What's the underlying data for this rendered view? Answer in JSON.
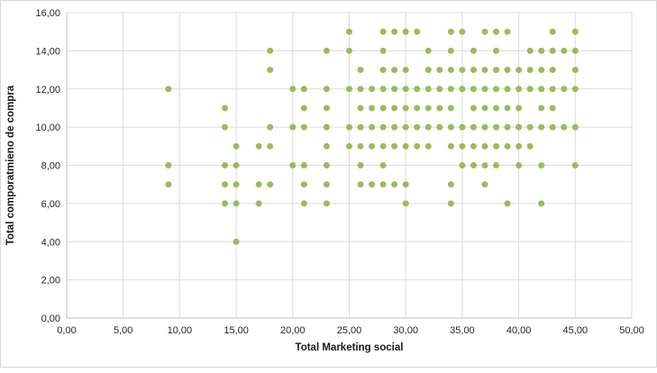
{
  "chart_data": {
    "type": "scatter",
    "title": "",
    "xlabel": "Total Marketing social",
    "ylabel": "Total comporatmieno de compra",
    "xlim": [
      0,
      50
    ],
    "ylim": [
      0,
      16
    ],
    "x_tick_values": [
      0,
      5,
      10,
      15,
      20,
      25,
      30,
      35,
      40,
      45,
      50
    ],
    "x_ticks": [
      "0,00",
      "5,00",
      "10,00",
      "15,00",
      "20,00",
      "25,00",
      "30,00",
      "35,00",
      "40,00",
      "45,00",
      "50,00"
    ],
    "y_tick_values": [
      0,
      2,
      4,
      6,
      8,
      10,
      12,
      14,
      16
    ],
    "y_ticks": [
      "0,00",
      "2,00",
      "4,00",
      "6,00",
      "8,00",
      "10,00",
      "12,00",
      "14,00",
      "16,00"
    ],
    "grid": true,
    "legend": "none",
    "marker_color": "#9BBB59",
    "gridline_color": "#DCDCDC",
    "axis_color": "#BFBFBF",
    "text_color": "#262626",
    "points": [
      [
        25,
        15
      ],
      [
        28,
        15
      ],
      [
        29,
        15
      ],
      [
        30,
        15
      ],
      [
        31,
        15
      ],
      [
        34,
        15
      ],
      [
        35,
        15
      ],
      [
        37,
        15
      ],
      [
        38,
        15
      ],
      [
        39,
        15
      ],
      [
        43,
        15
      ],
      [
        45,
        15
      ],
      [
        18,
        14
      ],
      [
        23,
        14
      ],
      [
        25,
        14
      ],
      [
        28,
        14
      ],
      [
        32,
        14
      ],
      [
        34,
        14
      ],
      [
        36,
        14
      ],
      [
        38,
        14
      ],
      [
        41,
        14
      ],
      [
        42,
        14
      ],
      [
        43,
        14
      ],
      [
        44,
        14
      ],
      [
        45,
        14
      ],
      [
        18,
        13
      ],
      [
        26,
        13
      ],
      [
        28,
        13
      ],
      [
        29,
        13
      ],
      [
        30,
        13
      ],
      [
        32,
        13
      ],
      [
        33,
        13
      ],
      [
        34,
        13
      ],
      [
        35,
        13
      ],
      [
        36,
        13
      ],
      [
        37,
        13
      ],
      [
        38,
        13
      ],
      [
        39,
        13
      ],
      [
        40,
        13
      ],
      [
        41,
        13
      ],
      [
        42,
        13
      ],
      [
        43,
        13
      ],
      [
        45,
        13
      ],
      [
        9,
        12
      ],
      [
        20,
        12
      ],
      [
        21,
        12
      ],
      [
        23,
        12
      ],
      [
        25,
        12
      ],
      [
        26,
        12
      ],
      [
        27,
        12
      ],
      [
        28,
        12
      ],
      [
        29,
        12
      ],
      [
        30,
        12
      ],
      [
        31,
        12
      ],
      [
        32,
        12
      ],
      [
        33,
        12
      ],
      [
        34,
        12
      ],
      [
        35,
        12
      ],
      [
        36,
        12
      ],
      [
        37,
        12
      ],
      [
        38,
        12
      ],
      [
        39,
        12
      ],
      [
        40,
        12
      ],
      [
        41,
        12
      ],
      [
        42,
        12
      ],
      [
        43,
        12
      ],
      [
        44,
        12
      ],
      [
        45,
        12
      ],
      [
        14,
        11
      ],
      [
        21,
        11
      ],
      [
        23,
        11
      ],
      [
        26,
        11
      ],
      [
        27,
        11
      ],
      [
        28,
        11
      ],
      [
        29,
        11
      ],
      [
        30,
        11
      ],
      [
        31,
        11
      ],
      [
        32,
        11
      ],
      [
        33,
        11
      ],
      [
        34,
        11
      ],
      [
        36,
        11
      ],
      [
        37,
        11
      ],
      [
        38,
        11
      ],
      [
        39,
        11
      ],
      [
        40,
        11
      ],
      [
        42,
        11
      ],
      [
        43,
        11
      ],
      [
        14,
        10
      ],
      [
        18,
        10
      ],
      [
        20,
        10
      ],
      [
        21,
        10
      ],
      [
        23,
        10
      ],
      [
        25,
        10
      ],
      [
        26,
        10
      ],
      [
        27,
        10
      ],
      [
        28,
        10
      ],
      [
        29,
        10
      ],
      [
        30,
        10
      ],
      [
        31,
        10
      ],
      [
        32,
        10
      ],
      [
        33,
        10
      ],
      [
        34,
        10
      ],
      [
        35,
        10
      ],
      [
        36,
        10
      ],
      [
        37,
        10
      ],
      [
        38,
        10
      ],
      [
        39,
        10
      ],
      [
        40,
        10
      ],
      [
        41,
        10
      ],
      [
        42,
        10
      ],
      [
        43,
        10
      ],
      [
        44,
        10
      ],
      [
        45,
        10
      ],
      [
        15,
        9
      ],
      [
        17,
        9
      ],
      [
        18,
        9
      ],
      [
        23,
        9
      ],
      [
        25,
        9
      ],
      [
        26,
        9
      ],
      [
        27,
        9
      ],
      [
        28,
        9
      ],
      [
        29,
        9
      ],
      [
        30,
        9
      ],
      [
        31,
        9
      ],
      [
        32,
        9
      ],
      [
        34,
        9
      ],
      [
        35,
        9
      ],
      [
        36,
        9
      ],
      [
        37,
        9
      ],
      [
        38,
        9
      ],
      [
        39,
        9
      ],
      [
        40,
        9
      ],
      [
        41,
        9
      ],
      [
        9,
        8
      ],
      [
        14,
        8
      ],
      [
        15,
        8
      ],
      [
        20,
        8
      ],
      [
        21,
        8
      ],
      [
        23,
        8
      ],
      [
        26,
        8
      ],
      [
        28,
        8
      ],
      [
        35,
        8
      ],
      [
        36,
        8
      ],
      [
        37,
        8
      ],
      [
        38,
        8
      ],
      [
        40,
        8
      ],
      [
        42,
        8
      ],
      [
        45,
        8
      ],
      [
        9,
        7
      ],
      [
        14,
        7
      ],
      [
        15,
        7
      ],
      [
        17,
        7
      ],
      [
        18,
        7
      ],
      [
        21,
        7
      ],
      [
        23,
        7
      ],
      [
        26,
        7
      ],
      [
        27,
        7
      ],
      [
        28,
        7
      ],
      [
        29,
        7
      ],
      [
        30,
        7
      ],
      [
        34,
        7
      ],
      [
        37,
        7
      ],
      [
        14,
        6
      ],
      [
        15,
        6
      ],
      [
        17,
        6
      ],
      [
        21,
        6
      ],
      [
        23,
        6
      ],
      [
        30,
        6
      ],
      [
        34,
        6
      ],
      [
        39,
        6
      ],
      [
        42,
        6
      ],
      [
        15,
        4
      ]
    ]
  }
}
